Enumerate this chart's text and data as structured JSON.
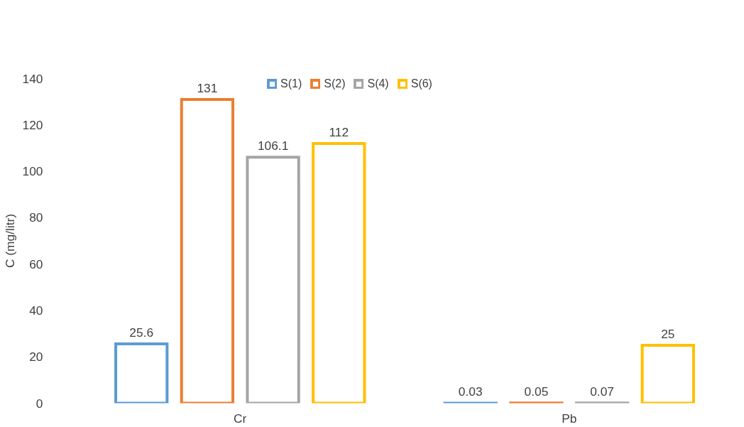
{
  "chart_data": {
    "type": "bar",
    "ylabel": "C (mg/litr)",
    "categories": [
      "Cr",
      "Pb"
    ],
    "series": [
      {
        "name": "S(1)",
        "color": "#5b9bd5",
        "values": [
          25.6,
          0.03
        ]
      },
      {
        "name": "S(2)",
        "color": "#ed7d31",
        "values": [
          131,
          0.05
        ]
      },
      {
        "name": "S(4)",
        "color": "#a5a5a5",
        "values": [
          106.1,
          0.07
        ]
      },
      {
        "name": "S(6)",
        "color": "#ffc000",
        "values": [
          112,
          25
        ]
      }
    ],
    "ylim": [
      0,
      140
    ],
    "yticks": [
      0,
      20,
      40,
      60,
      80,
      100,
      120,
      140
    ],
    "grid": false,
    "legend": "top",
    "data_labels": true
  }
}
